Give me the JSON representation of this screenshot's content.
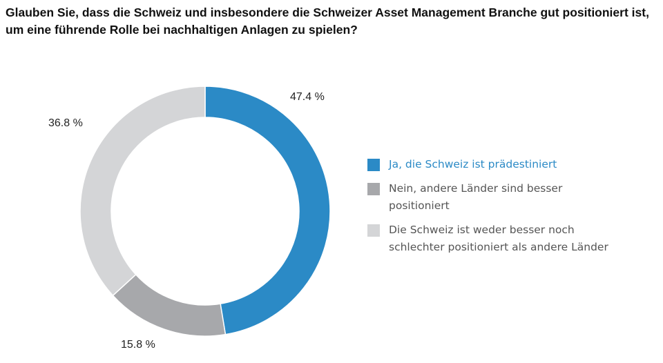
{
  "chart_data": {
    "type": "pie",
    "donut": true,
    "title": "Glauben Sie, dass die Schweiz und insbesondere die Schweizer Asset Management Branche gut positioniert ist, um eine führende Rolle bei nachhaltigen Anlagen zu spielen?",
    "legend_position": "right",
    "slices": [
      {
        "name": "Ja, die Schweiz ist prädestiniert",
        "value": 47.4,
        "label": "47.4 %",
        "color": "#2b8ac6",
        "text_color": "#2b8ac6"
      },
      {
        "name": "Nein, andere Länder sind besser positioniert",
        "value": 15.8,
        "label": "15.8 %",
        "color": "#a7a8ab",
        "text_color": "#555555"
      },
      {
        "name": "Die Schweiz ist weder besser noch schlechter positioniert als andere Länder",
        "value": 36.8,
        "label": "36.8 %",
        "color": "#d4d5d7",
        "text_color": "#555555"
      }
    ]
  }
}
